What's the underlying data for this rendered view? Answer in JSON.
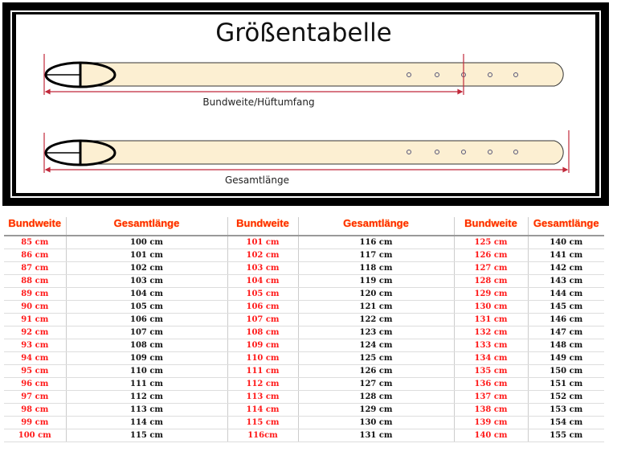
{
  "diagram": {
    "title": "Größentabelle",
    "label_waist": "Bundweite/Hüftumfang",
    "label_total": "Gesamtlänge",
    "colors": {
      "belt": "#fcefd2",
      "measure_line": "#c0283a",
      "frame": "#000000"
    }
  },
  "table": {
    "headers": [
      "Bundweite",
      "Gesamtlänge",
      "Bundweite",
      "Gesamtlänge",
      "Bundweite",
      "Gesamtlänge"
    ],
    "colors": {
      "bundweite": "#ff1a1a",
      "gesamtlaenge": "#111111",
      "header": "#ff2a00"
    },
    "rows": [
      [
        "85 cm",
        "100 cm",
        "101 cm",
        "116 cm",
        "125 cm",
        "140 cm"
      ],
      [
        "86 cm",
        "101 cm",
        "102 cm",
        "117 cm",
        "126 cm",
        "141 cm"
      ],
      [
        "87 cm",
        "102 cm",
        "103 cm",
        "118 cm",
        "127 cm",
        "142 cm"
      ],
      [
        "88 cm",
        "103 cm",
        "104 cm",
        "119 cm",
        "128 cm",
        "143 cm"
      ],
      [
        "89 cm",
        "104 cm",
        "105 cm",
        "120 cm",
        "129 cm",
        "144 cm"
      ],
      [
        "90 cm",
        "105 cm",
        "106 cm",
        "121 cm",
        "130 cm",
        "145 cm"
      ],
      [
        "91 cm",
        "106 cm",
        "107 cm",
        "122 cm",
        "131 cm",
        "146 cm"
      ],
      [
        "92 cm",
        "107 cm",
        "108 cm",
        "123 cm",
        "132 cm",
        "147 cm"
      ],
      [
        "93 cm",
        "108 cm",
        "109 cm",
        "124 cm",
        "133 cm",
        "148 cm"
      ],
      [
        "94 cm",
        "109 cm",
        "110 cm",
        "125 cm",
        "134 cm",
        "149 cm"
      ],
      [
        "95 cm",
        "110 cm",
        "111 cm",
        "126 cm",
        "135 cm",
        "150 cm"
      ],
      [
        "96 cm",
        "111 cm",
        "112 cm",
        "127 cm",
        "136 cm",
        "151 cm"
      ],
      [
        "97 cm",
        "112 cm",
        "113 cm",
        "128 cm",
        "137 cm",
        "152 cm"
      ],
      [
        "98 cm",
        "113 cm",
        "114 cm",
        "129 cm",
        "138 cm",
        "153 cm"
      ],
      [
        "99 cm",
        "114 cm",
        "115 cm",
        "130 cm",
        "139 cm",
        "154 cm"
      ],
      [
        "100 cm",
        "115 cm",
        "116cm",
        "131 cm",
        "140 cm",
        "155 cm"
      ]
    ]
  }
}
